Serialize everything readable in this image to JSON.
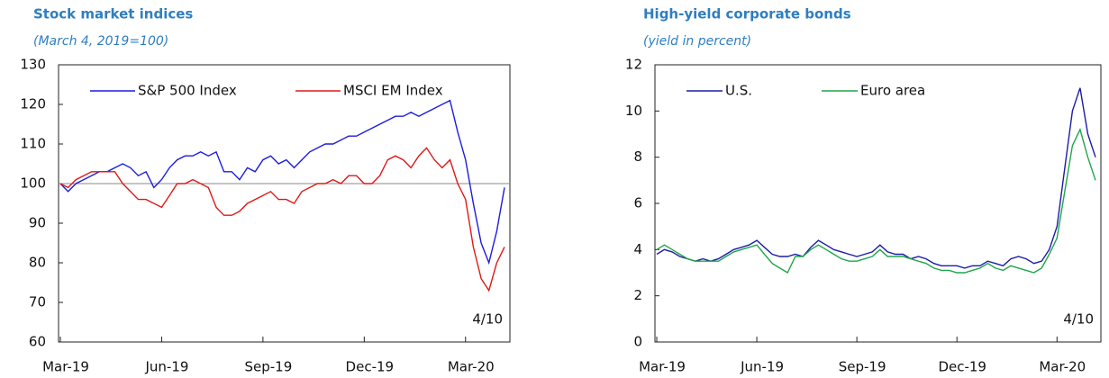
{
  "chart_data": [
    {
      "type": "line",
      "title": "Stock market indices",
      "subtitle": "(March 4, 2019=100)",
      "categories": [
        "Mar-19",
        null,
        null,
        null,
        null,
        null,
        null,
        null,
        null,
        null,
        null,
        null,
        null,
        "Jun-19",
        null,
        null,
        null,
        null,
        null,
        null,
        null,
        null,
        null,
        null,
        null,
        null,
        "Sep-19",
        null,
        null,
        null,
        null,
        null,
        null,
        null,
        null,
        null,
        null,
        null,
        null,
        "Dec-19",
        null,
        null,
        null,
        null,
        null,
        null,
        null,
        null,
        null,
        null,
        null,
        null,
        "Mar-20",
        null,
        null,
        null,
        null,
        null
      ],
      "series": [
        {
          "name": "S&P 500 Index",
          "color": "#1c1ce0",
          "values": [
            100,
            98,
            100,
            101,
            102,
            103,
            103,
            104,
            105,
            104,
            102,
            103,
            99,
            101,
            104,
            106,
            107,
            107,
            108,
            107,
            108,
            103,
            103,
            101,
            104,
            103,
            106,
            107,
            105,
            106,
            104,
            106,
            108,
            109,
            110,
            110,
            111,
            112,
            112,
            113,
            114,
            115,
            116,
            117,
            117,
            118,
            117,
            118,
            119,
            120,
            121,
            113,
            106,
            95,
            85,
            80,
            88,
            99
          ]
        },
        {
          "name": "MSCI EM Index",
          "color": "#e01818",
          "values": [
            100,
            99,
            101,
            102,
            103,
            103,
            103,
            103,
            100,
            98,
            96,
            96,
            95,
            94,
            97,
            100,
            100,
            101,
            100,
            99,
            94,
            92,
            92,
            93,
            95,
            96,
            97,
            98,
            96,
            96,
            95,
            98,
            99,
            100,
            100,
            101,
            100,
            102,
            102,
            100,
            100,
            102,
            106,
            107,
            106,
            104,
            107,
            109,
            106,
            104,
            106,
            100,
            96,
            84,
            76,
            73,
            80,
            84
          ]
        }
      ],
      "ylim": [
        60,
        130
      ],
      "yticks": [
        60,
        70,
        80,
        90,
        100,
        110,
        120,
        130
      ],
      "reference_line": 100,
      "annotation": "4/10",
      "legend": "upper left"
    },
    {
      "type": "line",
      "title": "High-yield corporate bonds",
      "subtitle": "(yield in percent)",
      "categories": [
        "Mar-19",
        null,
        null,
        null,
        null,
        null,
        null,
        null,
        null,
        null,
        null,
        null,
        null,
        "Jun-19",
        null,
        null,
        null,
        null,
        null,
        null,
        null,
        null,
        null,
        null,
        null,
        null,
        "Sep-19",
        null,
        null,
        null,
        null,
        null,
        null,
        null,
        null,
        null,
        null,
        null,
        null,
        "Dec-19",
        null,
        null,
        null,
        null,
        null,
        null,
        null,
        null,
        null,
        null,
        null,
        null,
        "Mar-20",
        null,
        null,
        null,
        null,
        null
      ],
      "series": [
        {
          "name": "U.S.",
          "color": "#1c1ca8",
          "values": [
            3.8,
            4.0,
            3.9,
            3.7,
            3.6,
            3.5,
            3.6,
            3.5,
            3.6,
            3.8,
            4.0,
            4.1,
            4.2,
            4.4,
            4.1,
            3.8,
            3.7,
            3.7,
            3.8,
            3.7,
            4.1,
            4.4,
            4.2,
            4.0,
            3.9,
            3.8,
            3.7,
            3.8,
            3.9,
            4.2,
            3.9,
            3.8,
            3.8,
            3.6,
            3.7,
            3.6,
            3.4,
            3.3,
            3.3,
            3.3,
            3.2,
            3.3,
            3.3,
            3.5,
            3.4,
            3.3,
            3.6,
            3.7,
            3.6,
            3.4,
            3.5,
            4.0,
            5.0,
            7.5,
            10.0,
            11.0,
            9.0,
            8.0
          ]
        },
        {
          "name": "Euro area",
          "color": "#1fa64a",
          "values": [
            4.0,
            4.2,
            4.0,
            3.8,
            3.6,
            3.5,
            3.5,
            3.5,
            3.5,
            3.7,
            3.9,
            4.0,
            4.1,
            4.2,
            3.8,
            3.4,
            3.2,
            3.0,
            3.7,
            3.7,
            4.0,
            4.2,
            4.0,
            3.8,
            3.6,
            3.5,
            3.5,
            3.6,
            3.7,
            4.0,
            3.7,
            3.7,
            3.7,
            3.6,
            3.5,
            3.4,
            3.2,
            3.1,
            3.1,
            3.0,
            3.0,
            3.1,
            3.2,
            3.4,
            3.2,
            3.1,
            3.3,
            3.2,
            3.1,
            3.0,
            3.2,
            3.8,
            4.5,
            6.5,
            8.5,
            9.2,
            8.0,
            7.0
          ]
        }
      ],
      "ylim": [
        0,
        12
      ],
      "yticks": [
        0,
        2,
        4,
        6,
        8,
        10,
        12
      ],
      "annotation": "4/10",
      "legend": "upper left"
    }
  ]
}
